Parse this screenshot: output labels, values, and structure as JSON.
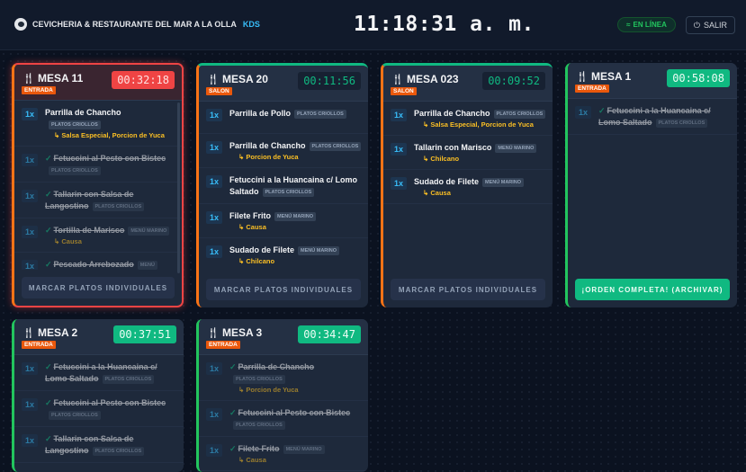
{
  "header": {
    "brand": "CEVICHERIA & RESTAURANTE DEL MAR A LA OLLA",
    "kds": "KDS",
    "clock": "11:18:31 a. m.",
    "status": "EN LÍNEA",
    "logout": "SALIR"
  },
  "colors": {
    "accent": "#10b981",
    "alert": "#ef4444",
    "tag": "#ea580c",
    "modifier": "#fbbf24",
    "qty": "#38bdf8"
  },
  "cards": [
    {
      "mesa": "MESA 11",
      "tag": "ENTRADA",
      "timer": "00:32:18",
      "timer_style": "red",
      "style": "alert",
      "button": "MARCAR PLATOS INDIVIDUALES",
      "items": [
        {
          "qty": "1x",
          "name": "Parrilla de Chancho",
          "cat": "PLATOS CRIOLLOS",
          "mods": "↳ Salsa Especial, Porcion de Yuca",
          "done": false
        },
        {
          "qty": "1x",
          "name": "Fetuccini al Pesto con Bistec",
          "cat": "PLATOS CRIOLLOS",
          "done": true
        },
        {
          "qty": "1x",
          "name": "Tallarin con Salsa de Langostino",
          "cat": "PLATOS CRIOLLOS",
          "done": true
        },
        {
          "qty": "1x",
          "name": "Tortilla de Marisco",
          "cat": "MENÚ MARINO",
          "mods": "↳ Causa",
          "done": true
        },
        {
          "qty": "1x",
          "name": "Pescado Arrebozado",
          "cat": "MENÚ",
          "done": true
        }
      ]
    },
    {
      "mesa": "MESA 20",
      "tag": "SALON",
      "timer": "00:11:56",
      "timer_style": "dark",
      "style": "topgreen",
      "button": "MARCAR PLATOS INDIVIDUALES",
      "items": [
        {
          "qty": "1x",
          "name": "Parrilla de Pollo",
          "cat": "PLATOS CRIOLLOS",
          "done": false
        },
        {
          "qty": "1x",
          "name": "Parrilla de Chancho",
          "cat": "PLATOS CRIOLLOS",
          "mods": "↳ Porcion de Yuca",
          "done": false
        },
        {
          "qty": "1x",
          "name": "Fetuccini a la Huancaina c/ Lomo Saltado",
          "cat": "PLATOS CRIOLLOS",
          "done": false
        },
        {
          "qty": "1x",
          "name": "Filete Frito",
          "cat": "MENÚ MARINO",
          "mods": "↳ Causa",
          "done": false
        },
        {
          "qty": "1x",
          "name": "Sudado de Filete",
          "cat": "MENÚ MARINO",
          "mods": "↳ Chilcano",
          "done": false
        }
      ]
    },
    {
      "mesa": "MESA 023",
      "tag": "SALON",
      "timer": "00:09:52",
      "timer_style": "dark",
      "style": "topgreen",
      "button": "MARCAR PLATOS INDIVIDUALES",
      "items": [
        {
          "qty": "1x",
          "name": "Parrilla de Chancho",
          "cat": "PLATOS CRIOLLOS",
          "mods": "↳ Salsa Especial, Porcion de Yuca",
          "done": false
        },
        {
          "qty": "1x",
          "name": "Tallarin con Marisco",
          "cat": "MENÚ MARINO",
          "mods": "↳ Chilcano",
          "done": false
        },
        {
          "qty": "1x",
          "name": "Sudado de Filete",
          "cat": "MENÚ MARINO",
          "mods": "↳ Causa",
          "done": false
        }
      ]
    },
    {
      "mesa": "MESA 1",
      "tag": "ENTRADA",
      "timer": "00:58:08",
      "timer_style": "green",
      "style": "",
      "button": "¡ORDEN COMPLETA! (ARCHIVAR)",
      "button_ok": true,
      "items": [
        {
          "qty": "1x",
          "name": "Fetuccini a la Huancaina c/ Lomo Saltado",
          "cat": "PLATOS CRIOLLOS",
          "done": true
        }
      ]
    },
    {
      "mesa": "MESA 2",
      "tag": "ENTRADA",
      "timer": "00:37:51",
      "timer_style": "green",
      "style": "",
      "items": [
        {
          "qty": "1x",
          "name": "Fetuccini a la Huancaina c/ Lomo Saltado",
          "cat": "PLATOS CRIOLLOS",
          "done": true
        },
        {
          "qty": "1x",
          "name": "Fetuccini al Pesto con Bistec",
          "cat": "PLATOS CRIOLLOS",
          "done": true
        },
        {
          "qty": "1x",
          "name": "Tallarin con Salsa de Langostino",
          "cat": "PLATOS CRIOLLOS",
          "done": true
        }
      ]
    },
    {
      "mesa": "MESA 3",
      "tag": "ENTRADA",
      "timer": "00:34:47",
      "timer_style": "green",
      "style": "",
      "items": [
        {
          "qty": "1x",
          "name": "Parrilla de Chancho",
          "cat": "PLATOS CRIOLLOS",
          "mods": "↳ Porcion de Yuca",
          "done": true
        },
        {
          "qty": "1x",
          "name": "Fetuccini al Pesto con Bistec",
          "cat": "PLATOS CRIOLLOS",
          "done": true
        },
        {
          "qty": "1x",
          "name": "Filete Frito",
          "cat": "MENÚ MARINO",
          "mods": "↳ Causa",
          "done": true
        }
      ]
    }
  ]
}
